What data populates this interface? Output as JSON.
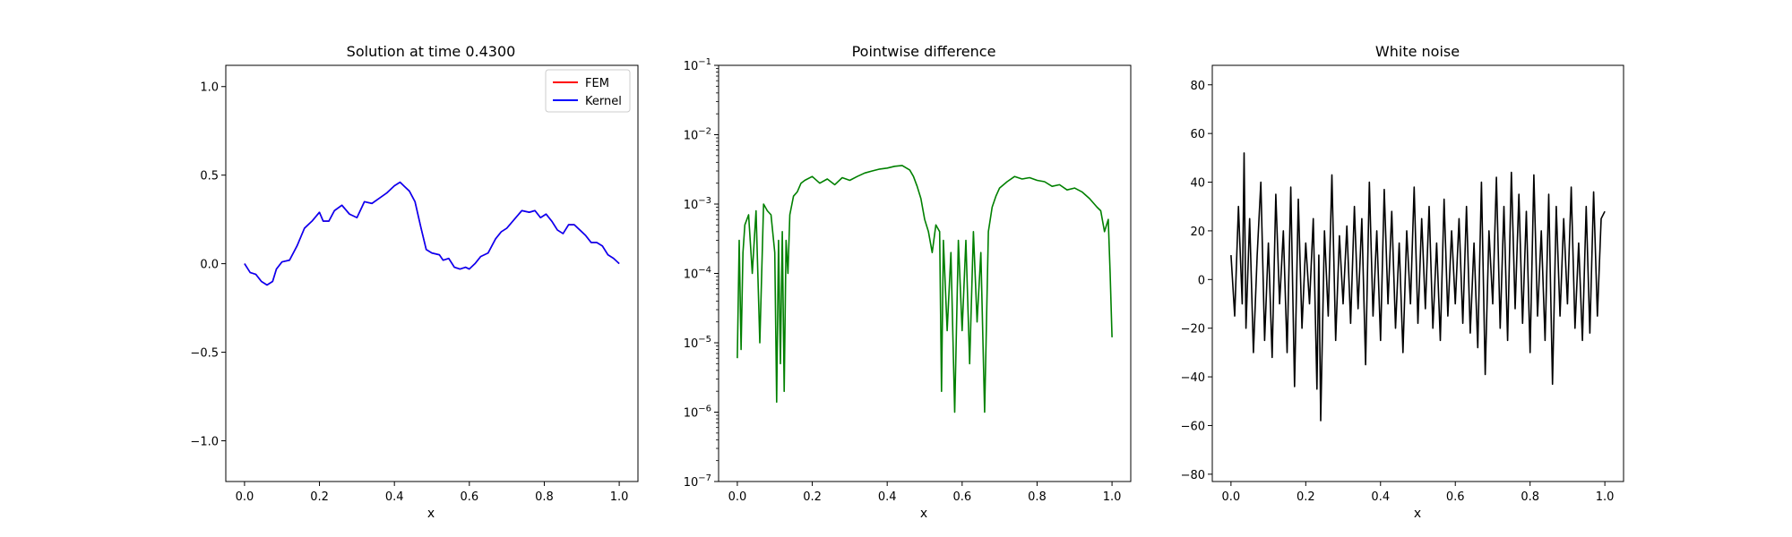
{
  "chart_data": [
    {
      "type": "line",
      "title": "Solution at time 0.4300",
      "xlabel": "x",
      "ylabel": "",
      "xlim": [
        -0.05,
        1.05
      ],
      "ylim": [
        -1.23,
        1.12
      ],
      "xticks": [
        0.0,
        0.2,
        0.4,
        0.6,
        0.8,
        1.0
      ],
      "xtick_labels": [
        "0.0",
        "0.2",
        "0.4",
        "0.6",
        "0.8",
        "1.0"
      ],
      "yticks": [
        -1.0,
        -0.5,
        0.0,
        0.5,
        1.0
      ],
      "ytick_labels": [
        "−1.0",
        "−0.5",
        "0.0",
        "0.5",
        "1.0"
      ],
      "legend": {
        "position": "top-right",
        "entries": [
          {
            "label": "FEM",
            "color": "#ff0000"
          },
          {
            "label": "Kernel",
            "color": "#0000ff"
          }
        ]
      },
      "series": [
        {
          "name": "FEM",
          "color": "#ff0000",
          "x": [
            0.0,
            0.015,
            0.03,
            0.045,
            0.06,
            0.075,
            0.085,
            0.1,
            0.12,
            0.14,
            0.16,
            0.18,
            0.2,
            0.21,
            0.225,
            0.24,
            0.26,
            0.28,
            0.3,
            0.32,
            0.34,
            0.36,
            0.38,
            0.4,
            0.415,
            0.425,
            0.44,
            0.455,
            0.47,
            0.485,
            0.5,
            0.52,
            0.53,
            0.545,
            0.56,
            0.575,
            0.59,
            0.6,
            0.615,
            0.63,
            0.65,
            0.67,
            0.685,
            0.7,
            0.72,
            0.74,
            0.76,
            0.775,
            0.79,
            0.805,
            0.82,
            0.835,
            0.85,
            0.865,
            0.88,
            0.895,
            0.91,
            0.925,
            0.94,
            0.955,
            0.97,
            0.985,
            1.0
          ],
          "y": [
            0.0,
            -0.05,
            -0.06,
            -0.1,
            -0.12,
            -0.1,
            -0.03,
            0.01,
            0.02,
            0.1,
            0.2,
            0.24,
            0.29,
            0.24,
            0.24,
            0.3,
            0.33,
            0.28,
            0.26,
            0.35,
            0.34,
            0.37,
            0.4,
            0.44,
            0.46,
            0.44,
            0.41,
            0.35,
            0.21,
            0.08,
            0.06,
            0.05,
            0.02,
            0.03,
            -0.02,
            -0.03,
            -0.02,
            -0.03,
            0.0,
            0.04,
            0.06,
            0.14,
            0.18,
            0.2,
            0.25,
            0.3,
            0.29,
            0.3,
            0.26,
            0.28,
            0.24,
            0.19,
            0.17,
            0.22,
            0.22,
            0.19,
            0.16,
            0.12,
            0.12,
            0.1,
            0.05,
            0.03,
            0.0
          ]
        },
        {
          "name": "Kernel",
          "color": "#0000ff",
          "x": [
            0.0,
            0.015,
            0.03,
            0.045,
            0.06,
            0.075,
            0.085,
            0.1,
            0.12,
            0.14,
            0.16,
            0.18,
            0.2,
            0.21,
            0.225,
            0.24,
            0.26,
            0.28,
            0.3,
            0.32,
            0.34,
            0.36,
            0.38,
            0.4,
            0.415,
            0.425,
            0.44,
            0.455,
            0.47,
            0.485,
            0.5,
            0.52,
            0.53,
            0.545,
            0.56,
            0.575,
            0.59,
            0.6,
            0.615,
            0.63,
            0.65,
            0.67,
            0.685,
            0.7,
            0.72,
            0.74,
            0.76,
            0.775,
            0.79,
            0.805,
            0.82,
            0.835,
            0.85,
            0.865,
            0.88,
            0.895,
            0.91,
            0.925,
            0.94,
            0.955,
            0.97,
            0.985,
            1.0
          ],
          "y": [
            0.0,
            -0.05,
            -0.06,
            -0.1,
            -0.12,
            -0.1,
            -0.03,
            0.01,
            0.02,
            0.1,
            0.2,
            0.24,
            0.29,
            0.24,
            0.24,
            0.3,
            0.33,
            0.28,
            0.26,
            0.35,
            0.34,
            0.37,
            0.4,
            0.44,
            0.46,
            0.44,
            0.41,
            0.35,
            0.21,
            0.08,
            0.06,
            0.05,
            0.02,
            0.03,
            -0.02,
            -0.03,
            -0.02,
            -0.03,
            0.0,
            0.04,
            0.06,
            0.14,
            0.18,
            0.2,
            0.25,
            0.3,
            0.29,
            0.3,
            0.26,
            0.28,
            0.24,
            0.19,
            0.17,
            0.22,
            0.22,
            0.19,
            0.16,
            0.12,
            0.12,
            0.1,
            0.05,
            0.03,
            0.0
          ]
        }
      ]
    },
    {
      "type": "line",
      "title": "Pointwise difference",
      "xlabel": "x",
      "ylabel": "",
      "yscale": "log",
      "xlim": [
        -0.05,
        1.05
      ],
      "ylim": [
        1e-07,
        0.1
      ],
      "xticks": [
        0.0,
        0.2,
        0.4,
        0.6,
        0.8,
        1.0
      ],
      "xtick_labels": [
        "0.0",
        "0.2",
        "0.4",
        "0.6",
        "0.8",
        "1.0"
      ],
      "yticks": [
        1e-07,
        1e-06,
        1e-05,
        0.0001,
        0.001,
        0.01,
        0.1
      ],
      "ytick_base": "10",
      "ytick_exponents": [
        "−7",
        "−6",
        "−5",
        "−4",
        "−3",
        "−2",
        "−1"
      ],
      "series": [
        {
          "color": "#008000",
          "x": [
            0.0,
            0.005,
            0.01,
            0.015,
            0.02,
            0.03,
            0.04,
            0.05,
            0.06,
            0.07,
            0.08,
            0.09,
            0.1,
            0.105,
            0.11,
            0.115,
            0.12,
            0.125,
            0.13,
            0.135,
            0.14,
            0.15,
            0.16,
            0.17,
            0.18,
            0.2,
            0.22,
            0.24,
            0.26,
            0.28,
            0.3,
            0.32,
            0.34,
            0.36,
            0.38,
            0.4,
            0.42,
            0.44,
            0.46,
            0.47,
            0.48,
            0.49,
            0.5,
            0.51,
            0.52,
            0.53,
            0.54,
            0.545,
            0.55,
            0.56,
            0.57,
            0.58,
            0.59,
            0.6,
            0.61,
            0.62,
            0.63,
            0.64,
            0.65,
            0.66,
            0.67,
            0.68,
            0.69,
            0.7,
            0.72,
            0.74,
            0.76,
            0.78,
            0.8,
            0.82,
            0.84,
            0.86,
            0.88,
            0.9,
            0.92,
            0.94,
            0.96,
            0.97,
            0.98,
            0.99,
            0.995,
            1.0
          ],
          "y": [
            6e-06,
            0.0003,
            8e-06,
            0.0002,
            0.0005,
            0.0007,
            0.0001,
            0.0008,
            1e-05,
            0.001,
            0.0008,
            0.0007,
            0.0002,
            1.4e-06,
            0.0003,
            5e-06,
            0.0004,
            2e-06,
            0.0003,
            0.0001,
            0.0007,
            0.0013,
            0.0015,
            0.002,
            0.0022,
            0.0025,
            0.002,
            0.0023,
            0.0019,
            0.0024,
            0.0022,
            0.0025,
            0.0028,
            0.003,
            0.0032,
            0.0033,
            0.0035,
            0.0036,
            0.0031,
            0.0025,
            0.0018,
            0.0012,
            0.0006,
            0.0004,
            0.0002,
            0.0005,
            0.0004,
            2e-06,
            0.0003,
            1.5e-05,
            0.0002,
            1e-06,
            0.0003,
            1.5e-05,
            0.0003,
            5e-06,
            0.0004,
            2e-05,
            0.0002,
            1e-06,
            0.0004,
            0.0009,
            0.0013,
            0.0017,
            0.0021,
            0.0025,
            0.0023,
            0.0024,
            0.0022,
            0.0021,
            0.0018,
            0.0019,
            0.0016,
            0.0017,
            0.0015,
            0.0012,
            0.0009,
            0.0008,
            0.0004,
            0.0006,
            0.0001,
            1.2e-05
          ]
        }
      ]
    },
    {
      "type": "line",
      "title": "White noise",
      "xlabel": "x",
      "ylabel": "",
      "xlim": [
        -0.05,
        1.05
      ],
      "ylim": [
        -83,
        88
      ],
      "xticks": [
        0.0,
        0.2,
        0.4,
        0.6,
        0.8,
        1.0
      ],
      "xtick_labels": [
        "0.0",
        "0.2",
        "0.4",
        "0.6",
        "0.8",
        "1.0"
      ],
      "yticks": [
        -80,
        -60,
        -40,
        -20,
        0,
        20,
        40,
        60,
        80
      ],
      "ytick_labels": [
        "−80",
        "−60",
        "−40",
        "−20",
        "0",
        "20",
        "40",
        "60",
        "80"
      ],
      "series": [
        {
          "color": "#000000",
          "x": [
            0.0,
            0.01,
            0.02,
            0.03,
            0.035,
            0.04,
            0.05,
            0.06,
            0.07,
            0.08,
            0.09,
            0.1,
            0.11,
            0.12,
            0.13,
            0.14,
            0.15,
            0.16,
            0.17,
            0.18,
            0.19,
            0.2,
            0.21,
            0.22,
            0.23,
            0.235,
            0.24,
            0.25,
            0.26,
            0.27,
            0.28,
            0.29,
            0.3,
            0.31,
            0.32,
            0.33,
            0.34,
            0.35,
            0.36,
            0.37,
            0.38,
            0.39,
            0.4,
            0.41,
            0.42,
            0.43,
            0.44,
            0.45,
            0.46,
            0.47,
            0.48,
            0.49,
            0.5,
            0.51,
            0.52,
            0.53,
            0.54,
            0.55,
            0.56,
            0.57,
            0.58,
            0.59,
            0.6,
            0.61,
            0.62,
            0.63,
            0.64,
            0.65,
            0.66,
            0.67,
            0.68,
            0.69,
            0.7,
            0.71,
            0.72,
            0.73,
            0.74,
            0.75,
            0.76,
            0.77,
            0.78,
            0.79,
            0.8,
            0.81,
            0.82,
            0.83,
            0.84,
            0.85,
            0.86,
            0.87,
            0.88,
            0.89,
            0.9,
            0.91,
            0.92,
            0.93,
            0.94,
            0.95,
            0.96,
            0.97,
            0.98,
            0.99,
            1.0
          ],
          "y": [
            10,
            -15,
            30,
            -10,
            52,
            -20,
            25,
            -30,
            10,
            40,
            -25,
            15,
            -32,
            35,
            -10,
            20,
            -30,
            38,
            -44,
            33,
            -20,
            15,
            -10,
            25,
            -45,
            10,
            -58,
            20,
            -15,
            43,
            -25,
            18,
            -10,
            22,
            -18,
            30,
            -12,
            25,
            -35,
            40,
            -15,
            20,
            -25,
            37,
            -10,
            28,
            -20,
            15,
            -30,
            20,
            -10,
            38,
            -18,
            25,
            -12,
            30,
            -20,
            15,
            -25,
            33,
            -15,
            20,
            -10,
            25,
            -18,
            30,
            -22,
            15,
            -28,
            40,
            -39,
            20,
            -10,
            42,
            -20,
            30,
            -25,
            44,
            -12,
            35,
            -18,
            28,
            -30,
            43,
            -15,
            20,
            -25,
            35,
            -43,
            30,
            -15,
            25,
            -10,
            38,
            -20,
            15,
            -25,
            30,
            -22,
            36,
            -15,
            25,
            28
          ]
        }
      ]
    }
  ]
}
